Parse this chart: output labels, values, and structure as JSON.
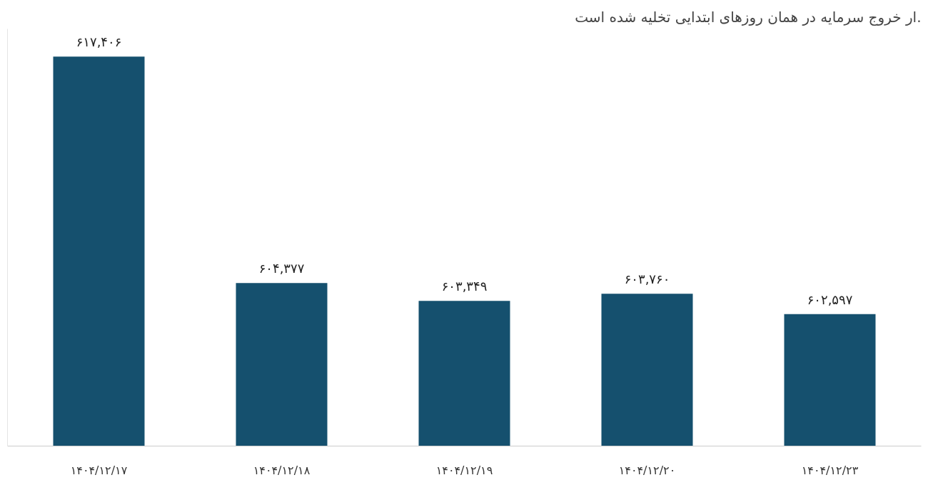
{
  "chart_data": {
    "type": "bar",
    "title": "ار خروج سرمایه در همان روزهای ابتدایی تخلیه شده است.",
    "categories": [
      "۱۴۰۴/۱۲/۱۷",
      "۱۴۰۴/۱۲/۱۸",
      "۱۴۰۴/۱۲/۱۹",
      "۱۴۰۴/۱۲/۲۰",
      "۱۴۰۴/۱۲/۲۳"
    ],
    "values": [
      617406,
      604377,
      603349,
      603760,
      602597
    ],
    "value_labels": [
      "۶۱۷,۴۰۶",
      "۶۰۴,۳۷۷",
      "۶۰۳,۳۴۹",
      "۶۰۳,۷۶۰",
      "۶۰۲,۵۹۷"
    ],
    "color": "#15506e",
    "ylim": [
      595000,
      619000
    ],
    "grid": false,
    "tick_labels": "x"
  }
}
